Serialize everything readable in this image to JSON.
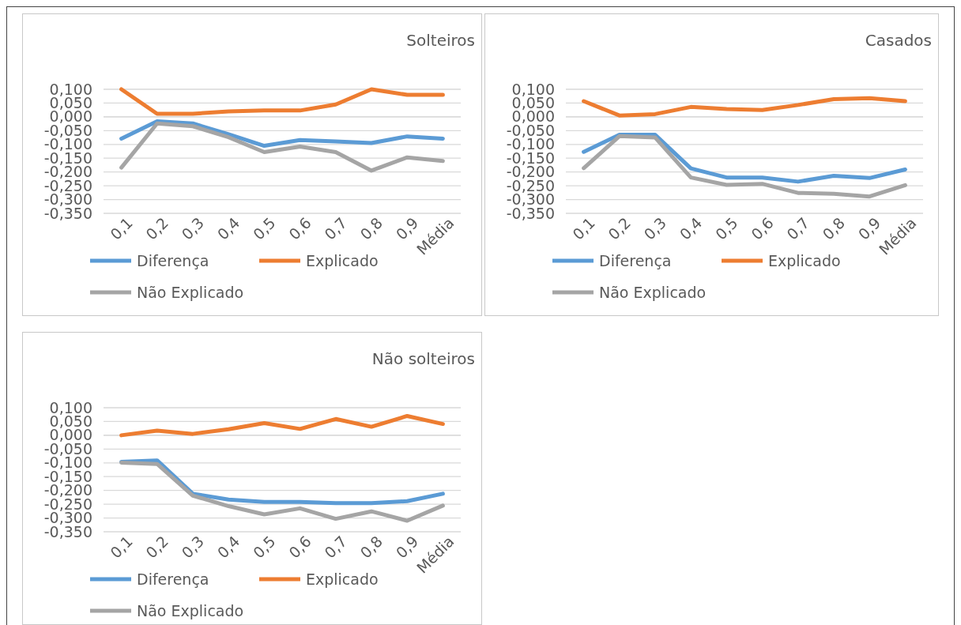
{
  "chart_data": [
    {
      "type": "line",
      "title": "Solteiros",
      "categories": [
        "0,1",
        "0,2",
        "0,3",
        "0,4",
        "0,5",
        "0,6",
        "0,7",
        "0,8",
        "0,9",
        "Média"
      ],
      "series": [
        {
          "name": "Diferença",
          "color": "#5b9bd5",
          "values": [
            -0.079,
            -0.016,
            -0.024,
            -0.063,
            -0.105,
            -0.084,
            -0.089,
            -0.095,
            -0.071,
            -0.079
          ]
        },
        {
          "name": "Explicado",
          "color": "#ed7d31",
          "values": [
            0.1,
            0.011,
            0.011,
            0.02,
            0.023,
            0.023,
            0.045,
            0.1,
            0.08,
            0.08
          ]
        },
        {
          "name": "Não Explicado",
          "color": "#a5a5a5",
          "values": [
            -0.184,
            -0.024,
            -0.034,
            -0.074,
            -0.128,
            -0.108,
            -0.128,
            -0.195,
            -0.147,
            -0.16
          ]
        }
      ],
      "ylim": [
        -0.35,
        0.1
      ],
      "yticks": [
        {
          "value": -0.35,
          "label": "-0,350"
        },
        {
          "value": -0.3,
          "label": "-0,300"
        },
        {
          "value": -0.25,
          "label": "-0,250"
        },
        {
          "value": -0.2,
          "label": "-0,200"
        },
        {
          "value": -0.15,
          "label": "-0,150"
        },
        {
          "value": -0.1,
          "label": "-0,100"
        },
        {
          "value": -0.05,
          "label": "-0,050"
        },
        {
          "value": 0,
          "label": "0,000"
        },
        {
          "value": 0.05,
          "label": "0,050"
        },
        {
          "value": 0.1,
          "label": "0,100"
        }
      ],
      "grid": "y",
      "legend": "bottom",
      "marker": "none",
      "line_style": "solid"
    },
    {
      "type": "line",
      "title": "Casados",
      "categories": [
        "0,1",
        "0,2",
        "0,3",
        "0,4",
        "0,5",
        "0,6",
        "0,7",
        "0,8",
        "0,9",
        "Média"
      ],
      "series": [
        {
          "name": "Diferença",
          "color": "#5b9bd5",
          "values": [
            -0.127,
            -0.065,
            -0.065,
            -0.187,
            -0.22,
            -0.22,
            -0.235,
            -0.214,
            -0.222,
            -0.191
          ]
        },
        {
          "name": "Explicado",
          "color": "#ed7d31",
          "values": [
            0.057,
            0.005,
            0.01,
            0.036,
            0.028,
            0.025,
            0.043,
            0.064,
            0.068,
            0.057
          ]
        },
        {
          "name": "Não Explicado",
          "color": "#a5a5a5",
          "values": [
            -0.186,
            -0.07,
            -0.075,
            -0.22,
            -0.247,
            -0.243,
            -0.276,
            -0.279,
            -0.289,
            -0.248
          ]
        }
      ],
      "ylim": [
        -0.35,
        0.1
      ],
      "yticks": [
        {
          "value": -0.35,
          "label": "-0,350"
        },
        {
          "value": -0.3,
          "label": "-0,300"
        },
        {
          "value": -0.25,
          "label": "-0,250"
        },
        {
          "value": -0.2,
          "label": "-0,200"
        },
        {
          "value": -0.15,
          "label": "-0,150"
        },
        {
          "value": -0.1,
          "label": "-0,100"
        },
        {
          "value": -0.05,
          "label": "-0,050"
        },
        {
          "value": 0,
          "label": "0,000"
        },
        {
          "value": 0.05,
          "label": "0,050"
        },
        {
          "value": 0.1,
          "label": "0,100"
        }
      ],
      "grid": "y",
      "legend": "bottom",
      "marker": "none",
      "line_style": "solid"
    },
    {
      "type": "line",
      "title": "Não solteiros",
      "categories": [
        "0,1",
        "0,2",
        "0,3",
        "0,4",
        "0,5",
        "0,6",
        "0,7",
        "0,8",
        "0,9",
        "Média"
      ],
      "series": [
        {
          "name": "Diferença",
          "color": "#5b9bd5",
          "values": [
            -0.096,
            -0.091,
            -0.212,
            -0.233,
            -0.242,
            -0.242,
            -0.246,
            -0.246,
            -0.239,
            -0.212
          ]
        },
        {
          "name": "Explicado",
          "color": "#ed7d31",
          "values": [
            0,
            0.017,
            0.005,
            0.022,
            0.044,
            0.023,
            0.059,
            0.031,
            0.07,
            0.041
          ]
        },
        {
          "name": "Não Explicado",
          "color": "#a5a5a5",
          "values": [
            -0.099,
            -0.104,
            -0.219,
            -0.257,
            -0.287,
            -0.265,
            -0.303,
            -0.276,
            -0.31,
            -0.255
          ]
        }
      ],
      "ylim": [
        -0.35,
        0.1
      ],
      "yticks": [
        {
          "value": -0.35,
          "label": "-0,350"
        },
        {
          "value": -0.3,
          "label": "-0,300"
        },
        {
          "value": -0.25,
          "label": "-0,250"
        },
        {
          "value": -0.2,
          "label": "-0,200"
        },
        {
          "value": -0.15,
          "label": "-0,150"
        },
        {
          "value": -0.1,
          "label": "-0,100"
        },
        {
          "value": -0.05,
          "label": "-0,050"
        },
        {
          "value": 0,
          "label": "0,000"
        },
        {
          "value": 0.05,
          "label": "0,050"
        },
        {
          "value": 0.1,
          "label": "0,100"
        }
      ],
      "grid": "y",
      "legend": "bottom",
      "marker": "none",
      "line_style": "solid"
    }
  ]
}
